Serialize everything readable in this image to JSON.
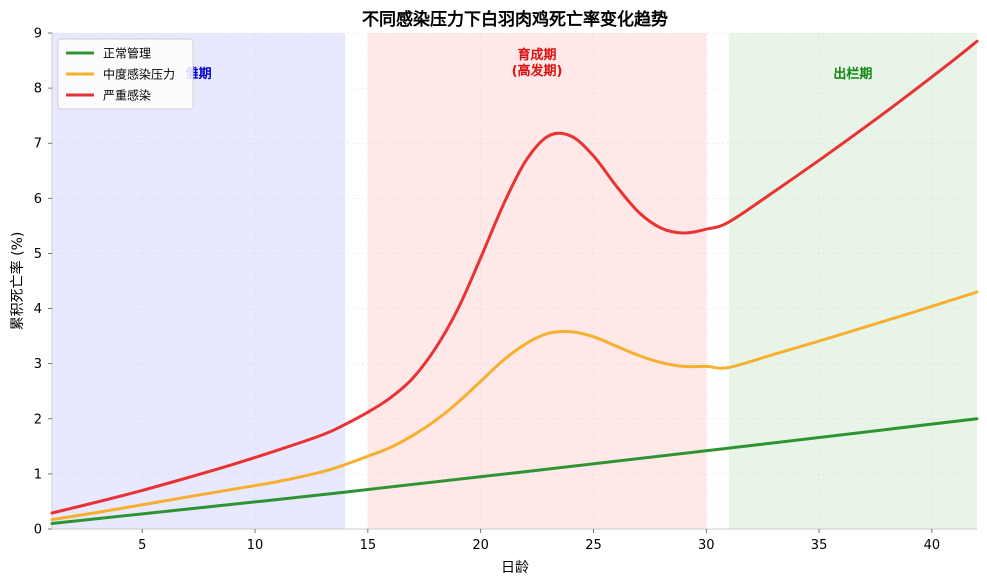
{
  "chart_data": {
    "type": "line",
    "title": "不同感染压力下白羽肉鸡死亡率变化趋势",
    "xlabel": "日龄",
    "ylabel": "累积死亡率 (%)",
    "xlim": [
      1,
      42
    ],
    "ylim": [
      0,
      9
    ],
    "xticks": [
      5,
      10,
      15,
      20,
      25,
      30,
      35,
      40
    ],
    "yticks": [
      0,
      1,
      2,
      3,
      4,
      5,
      6,
      7,
      8,
      9
    ],
    "grid": true,
    "legend_position": "top-left",
    "stages": [
      {
        "label": "雏期",
        "range": [
          1,
          14
        ],
        "color": "#e8e8ff",
        "label_color": "#0000cc"
      },
      {
        "label": "育成期\n(高发期)",
        "range": [
          15,
          30
        ],
        "color": "#ffe8e8",
        "label_color": "#dd1111"
      },
      {
        "label": "出栏期",
        "range": [
          31,
          42
        ],
        "color": "#e8f4e8",
        "label_color": "#118811"
      }
    ],
    "series": [
      {
        "name": "正常管理",
        "color": "#2e9431",
        "x": [
          1,
          14,
          30,
          42
        ],
        "y": [
          0.1,
          0.67,
          1.42,
          2.0
        ]
      },
      {
        "name": "中度感染压力",
        "color": "#f5b02f",
        "x": [
          1,
          3,
          5,
          7,
          9,
          11,
          13,
          14,
          15,
          16,
          17,
          18,
          19,
          20,
          21,
          22,
          23,
          24,
          25,
          26,
          27,
          28,
          29,
          30,
          31,
          33,
          35,
          37,
          39,
          41,
          42
        ],
        "y": [
          0.17,
          0.3,
          0.44,
          0.58,
          0.72,
          0.86,
          1.04,
          1.17,
          1.32,
          1.48,
          1.7,
          1.97,
          2.3,
          2.68,
          3.06,
          3.36,
          3.55,
          3.58,
          3.49,
          3.32,
          3.15,
          3.02,
          2.95,
          2.95,
          2.93,
          3.17,
          3.41,
          3.66,
          3.91,
          4.17,
          4.3
        ]
      },
      {
        "name": "严重感染",
        "color": "#e83332",
        "x": [
          1,
          3,
          5,
          7,
          9,
          11,
          13,
          14,
          15,
          16,
          17,
          18,
          19,
          20,
          21,
          22,
          23,
          24,
          25,
          26,
          27,
          28,
          29,
          30,
          31,
          33,
          35,
          37,
          39,
          41,
          42
        ],
        "y": [
          0.29,
          0.49,
          0.7,
          0.93,
          1.17,
          1.43,
          1.71,
          1.9,
          2.12,
          2.38,
          2.74,
          3.28,
          4.0,
          4.92,
          5.88,
          6.68,
          7.13,
          7.13,
          6.77,
          6.23,
          5.75,
          5.46,
          5.37,
          5.44,
          5.57,
          6.12,
          6.69,
          7.28,
          7.89,
          8.52,
          8.85
        ]
      }
    ]
  }
}
